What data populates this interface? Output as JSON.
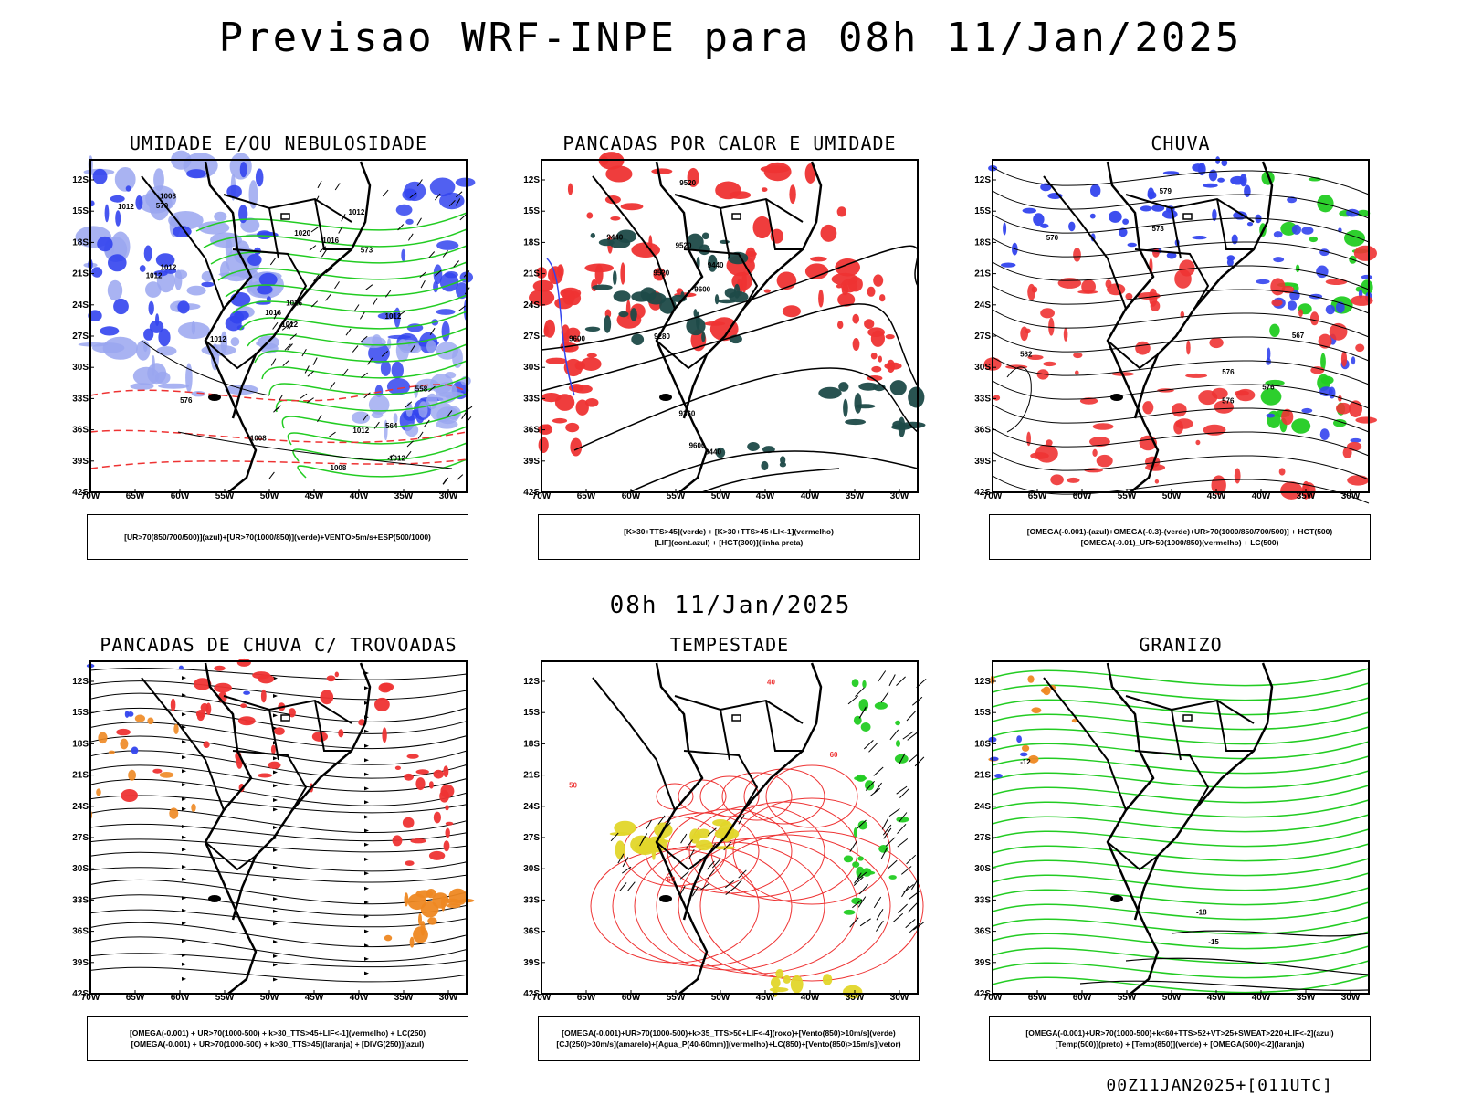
{
  "title": "Previsao WRF-INPE  para 08h 11/Jan/2025",
  "middle_title": "08h 11/Jan/2025",
  "footer": "00Z11JAN2025+[011UTC]",
  "colors": {
    "blue": "#3344ee",
    "lightblue": "#9aa6f0",
    "green": "#22cc22",
    "red": "#ee3333",
    "darkteal": "#1e4a48",
    "orange": "#ee8822",
    "yellow": "#e2d62a",
    "black": "#000000"
  },
  "chart_data": [
    {
      "type": "heatmap",
      "title": "UMIDADE E/OU NEBULOSIDADE",
      "xlabel": "",
      "ylabel": "",
      "x_ticks": [
        "70W",
        "65W",
        "60W",
        "55W",
        "50W",
        "45W",
        "40W",
        "35W",
        "30W"
      ],
      "y_ticks": [
        "12S",
        "15S",
        "18S",
        "21S",
        "24S",
        "27S",
        "30S",
        "33S",
        "36S",
        "39S",
        "42S"
      ],
      "xlim": [
        -70,
        -28
      ],
      "ylim": [
        -42,
        -10
      ],
      "contour_labels": [
        "1012",
        "1012",
        "1012",
        "1012",
        "1012",
        "1012",
        "1012",
        "1012",
        "1012",
        "1008",
        "1008",
        "1008",
        "1016",
        "1016",
        "1016",
        "1020",
        "576",
        "573",
        "570",
        "564",
        "558"
      ],
      "legend_lines": [
        "[UR>70(850/700/500)](azul)+[UR>70(1000/850)](verde)+VENTO>5m/s+ESP(500/1000)"
      ]
    },
    {
      "type": "heatmap",
      "title": "PANCADAS POR CALOR E UMIDADE",
      "xlabel": "",
      "ylabel": "",
      "x_ticks": [
        "70W",
        "65W",
        "60W",
        "55W",
        "50W",
        "45W",
        "40W",
        "35W",
        "30W"
      ],
      "y_ticks": [
        "12S",
        "15S",
        "18S",
        "21S",
        "24S",
        "27S",
        "30S",
        "33S",
        "36S",
        "39S",
        "42S"
      ],
      "xlim": [
        -70,
        -28
      ],
      "ylim": [
        -42,
        -10
      ],
      "contour_labels": [
        "9600",
        "9600",
        "9600",
        "9520",
        "9520",
        "9520",
        "9440",
        "9440",
        "9440",
        "9360",
        "9280"
      ],
      "legend_lines": [
        "[K>30+TTS>45](verde)  +  [K>30+TTS>45+LI<-1](vermelho)",
        "[LIF](cont.azul)  +  [HGT(300)](linha preta)"
      ]
    },
    {
      "type": "heatmap",
      "title": "CHUVA",
      "xlabel": "",
      "ylabel": "",
      "x_ticks": [
        "70W",
        "65W",
        "60W",
        "55W",
        "50W",
        "45W",
        "40W",
        "35W",
        "30W"
      ],
      "y_ticks": [
        "12S",
        "15S",
        "18S",
        "21S",
        "24S",
        "27S",
        "30S",
        "33S",
        "36S",
        "39S",
        "42S"
      ],
      "xlim": [
        -70,
        -28
      ],
      "ylim": [
        -42,
        -10
      ],
      "contour_labels": [
        "582",
        "579",
        "576",
        "576",
        "576",
        "573",
        "570",
        "567"
      ],
      "legend_lines": [
        "[OMEGA(-0.001)-(azul)+OMEGA(-0.3)-(verde)+UR>70(1000/850/700/500)]  +  HGT(500)",
        "[OMEGA(-0.01)_UR>50(1000/850)(vermelho)  +  LC(500)"
      ]
    },
    {
      "type": "heatmap",
      "title": "PANCADAS DE CHUVA C/ TROVOADAS",
      "xlabel": "",
      "ylabel": "",
      "x_ticks": [
        "70W",
        "65W",
        "60W",
        "55W",
        "50W",
        "45W",
        "40W",
        "35W",
        "30W"
      ],
      "y_ticks": [
        "12S",
        "15S",
        "18S",
        "21S",
        "24S",
        "27S",
        "30S",
        "33S",
        "36S",
        "39S",
        "42S"
      ],
      "xlim": [
        -70,
        -28
      ],
      "ylim": [
        -42,
        -10
      ],
      "contour_labels": [],
      "legend_lines": [
        "[OMEGA(-0.001)  +  UR>70(1000-500)  +  k>30_TTS>45+LIF<-1](vermelho)  +  LC(250)",
        "[OMEGA(-0.001)  +  UR>70(1000-500)  +  k>30_TTS>45](laranja)  +  [DIVG(250)](azul)"
      ]
    },
    {
      "type": "heatmap",
      "title": "TEMPESTADE",
      "xlabel": "",
      "ylabel": "",
      "x_ticks": [
        "70W",
        "65W",
        "60W",
        "55W",
        "50W",
        "45W",
        "40W",
        "35W",
        "30W"
      ],
      "y_ticks": [
        "12S",
        "15S",
        "18S",
        "21S",
        "24S",
        "27S",
        "30S",
        "33S",
        "36S",
        "39S",
        "42S"
      ],
      "xlim": [
        -70,
        -28
      ],
      "ylim": [
        -42,
        -10
      ],
      "contour_labels": [
        "50",
        "60",
        "60",
        "40"
      ],
      "legend_lines": [
        "[OMEGA(-0.001)+UR>70(1000-500)+k>35_TTS>50+LIF<-4](roxo)+[Vento(850)>10m/s](verde)",
        "[CJ(250)>30m/s](amarelo)+[Agua_P(40-60mm)](vermelho)+LC(850)+[Vento(850)>15m/s](vetor)"
      ]
    },
    {
      "type": "heatmap",
      "title": "GRANIZO",
      "xlabel": "",
      "ylabel": "",
      "x_ticks": [
        "70W",
        "65W",
        "60W",
        "55W",
        "50W",
        "45W",
        "40W",
        "35W",
        "30W"
      ],
      "y_ticks": [
        "12S",
        "15S",
        "18S",
        "21S",
        "24S",
        "27S",
        "30S",
        "33S",
        "36S",
        "39S",
        "42S"
      ],
      "xlim": [
        -70,
        -28
      ],
      "ylim": [
        -42,
        -10
      ],
      "contour_labels": [
        "-12",
        "-15",
        "-18"
      ],
      "legend_lines": [
        "[OMEGA(-0.001)+UR>70(1000-500)+k<60+TTS>52+VT>25+SWEAT>220+LIF<-2](azul)",
        "[Temp(500)](preto)  +  [Temp(850)](verde)  +  [OMEGA(500)<-2](laranja)"
      ]
    }
  ]
}
